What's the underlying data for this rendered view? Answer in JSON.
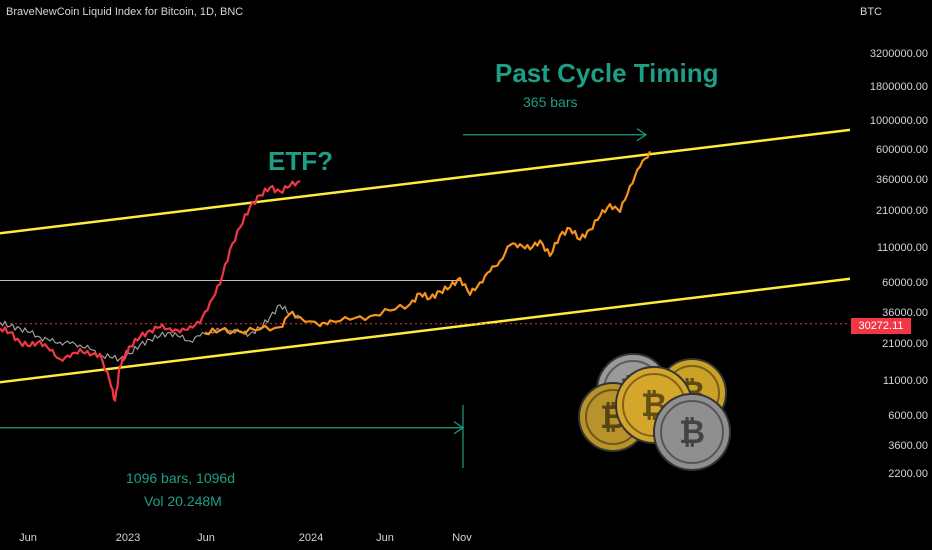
{
  "header": {
    "title": "BraveNewCoin Liquid Index for Bitcoin, 1D, BNC"
  },
  "annotations": {
    "etf": "ETF?",
    "past_cycle": "Past Cycle Timing",
    "bars_365": "365 bars",
    "bars_1096": "1096 bars, 1096d",
    "volume": "Vol 20.248M"
  },
  "price_axis": {
    "unit": "BTC",
    "ticks": [
      "3200000.00",
      "1800000.00",
      "1000000.00",
      "600000.00",
      "360000.00",
      "210000.00",
      "110000.00",
      "60000.00",
      "36000.00",
      "21000.00",
      "11000.00",
      "6000.00",
      "3600.00",
      "2200.00"
    ],
    "current_price": "30272.11"
  },
  "time_axis": {
    "ticks": [
      "Jun",
      "2023",
      "Jun",
      "2024",
      "Jun",
      "Nov"
    ]
  },
  "colors": {
    "background": "#000000",
    "channel": "#ffeb3b",
    "annotation": "#1f9e86",
    "current_price_line": "#f23645",
    "projection": "#f7931a",
    "price_current": "#f23645",
    "price_history": "#9e9e9e"
  },
  "chart_data": {
    "type": "line",
    "title": "BraveNewCoin Liquid Index for Bitcoin, 1D, BNC",
    "y_scale": "log",
    "ylim": [
      1700,
      4500000
    ],
    "xlabel": "",
    "ylabel": "",
    "x_ticks": [
      "Jun",
      "2023",
      "Jun",
      "2024",
      "Jun",
      "Nov"
    ],
    "legend": "none",
    "grid": false,
    "series": [
      {
        "x": [
          0,
          10,
          20,
          30,
          40,
          50,
          60,
          70,
          80,
          90,
          100,
          110,
          115,
          120,
          125,
          130,
          140,
          150,
          160,
          170,
          180,
          190,
          200,
          210,
          220,
          230,
          240,
          250,
          260,
          270,
          280,
          290,
          300
        ],
        "values": [
          28000,
          26000,
          22000,
          20500,
          22500,
          19000,
          16500,
          17000,
          19500,
          17500,
          18000,
          11000,
          8000,
          14500,
          17500,
          20500,
          24000,
          27000,
          28500,
          28000,
          26000,
          29000,
          30500,
          44000,
          60000,
          110000,
          160000,
          230000,
          280000,
          320000,
          300000,
          330000,
          360000
        ]
      },
      {
        "x": [
          0,
          10,
          20,
          30,
          40,
          50,
          60,
          70,
          80,
          90,
          100,
          110,
          120,
          130,
          140,
          150,
          160,
          170,
          180,
          190,
          200,
          210,
          220,
          230,
          240,
          250,
          260,
          270,
          280,
          290,
          300
        ],
        "values": [
          31000,
          29000,
          28000,
          26000,
          24000,
          22500,
          22000,
          21500,
          21000,
          19500,
          17500,
          17000,
          16500,
          18000,
          21000,
          23000,
          24500,
          26000,
          24000,
          22500,
          24500,
          26500,
          27000,
          27000,
          26000,
          25500,
          28000,
          34000,
          42000,
          36000,
          34000
        ]
      },
      {
        "x": [
          205,
          220,
          240,
          260,
          280,
          290,
          300,
          320,
          330,
          350,
          370,
          390,
          410,
          420,
          430,
          440,
          450,
          460,
          470,
          480,
          490,
          500,
          510,
          520,
          530,
          540,
          550,
          560,
          570,
          580,
          590,
          600,
          610,
          620,
          630,
          640,
          650
        ],
        "values": [
          26000,
          27000,
          26500,
          27500,
          28500,
          36000,
          34000,
          29000,
          32000,
          32500,
          34500,
          38000,
          42500,
          51000,
          47000,
          53000,
          57000,
          67000,
          50000,
          62000,
          75000,
          90000,
          118000,
          120000,
          110000,
          128000,
          98000,
          140000,
          158000,
          130000,
          155000,
          195000,
          240000,
          210000,
          330000,
          460000,
          600000
        ]
      }
    ],
    "levels": [
      {
        "value": 64000,
        "x_range": [
          0,
          460
        ]
      }
    ],
    "channel": {
      "upper": {
        "x": [
          0,
          850
        ],
        "values": [
          145000,
          870000
        ]
      },
      "lower": {
        "x": [
          0,
          850
        ],
        "values": [
          11000,
          66000
        ]
      }
    },
    "measures": [
      {
        "from_x": 0,
        "to_x": 463,
        "at": 5000,
        "label": "1096 bars, 1096d"
      },
      {
        "from_x": 463,
        "to_x": 646,
        "at": 800000,
        "label": "365 bars"
      }
    ],
    "current_price": 30272.11
  }
}
